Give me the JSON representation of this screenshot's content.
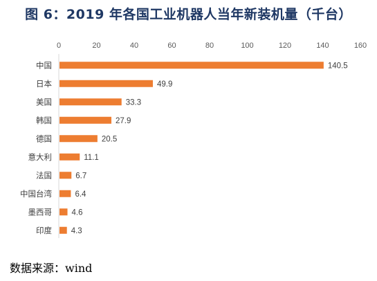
{
  "title": "图 6：2019 年各国工业机器人当年新装机量（千台）",
  "source": "数据来源：wind",
  "chart_data": {
    "type": "bar",
    "orientation": "horizontal",
    "categories": [
      "中国",
      "日本",
      "美国",
      "韩国",
      "德国",
      "意大利",
      "法国",
      "中国台湾",
      "墨西哥",
      "印度"
    ],
    "values": [
      140.5,
      49.9,
      33.3,
      27.9,
      20.5,
      11.1,
      6.7,
      6.4,
      4.6,
      4.3
    ],
    "value_labels": [
      "140.5",
      "49.9",
      "33.3",
      "27.9",
      "20.5",
      "11.1",
      "6.7",
      "6.4",
      "4.6",
      "4.3"
    ],
    "xlim": [
      0,
      160
    ],
    "xticks": [
      "0",
      "20",
      "40",
      "60",
      "80",
      "100",
      "120",
      "140",
      "160"
    ],
    "xaxis_position": "top",
    "grid": false,
    "bar_color": "#ed7d31"
  }
}
